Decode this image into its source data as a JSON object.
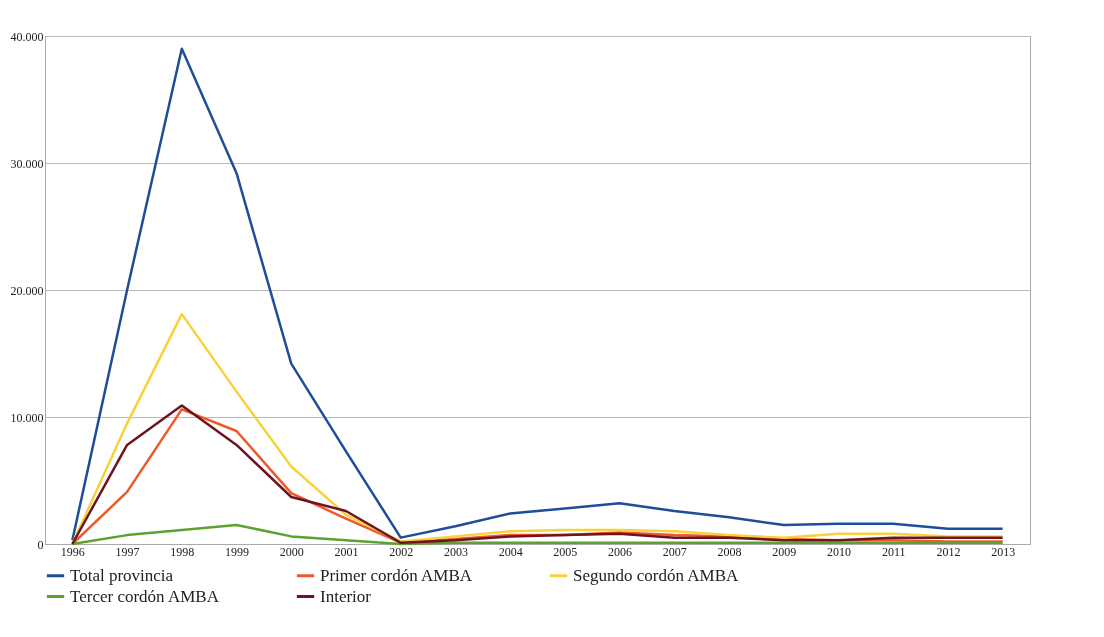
{
  "chart_data": {
    "type": "line",
    "categories": [
      "1996",
      "1997",
      "1998",
      "1999",
      "2000",
      "2001",
      "2002",
      "2003",
      "2004",
      "2005",
      "2006",
      "2007",
      "2008",
      "2009",
      "2010",
      "2011",
      "2012",
      "2013"
    ],
    "series": [
      {
        "name": "Total provincia",
        "color": "#1f4e99",
        "values": [
          300,
          20000,
          39000,
          29200,
          14200,
          7300,
          500,
          1400,
          2400,
          2800,
          3200,
          2600,
          2100,
          1500,
          1600,
          1600,
          1200,
          1200
        ]
      },
      {
        "name": "Primer cordón AMBA",
        "color": "#f0582a",
        "values": [
          0,
          4100,
          10600,
          8900,
          4000,
          2000,
          100,
          400,
          700,
          700,
          900,
          700,
          600,
          400,
          300,
          300,
          200,
          200
        ]
      },
      {
        "name": "Segundo cordón AMBA",
        "color": "#f7d23e",
        "values": [
          0,
          9500,
          18100,
          12000,
          6100,
          2300,
          200,
          600,
          1000,
          1100,
          1100,
          1000,
          700,
          500,
          800,
          800,
          600,
          600
        ]
      },
      {
        "name": "Tercer cordón AMBA",
        "color": "#5da130",
        "values": [
          0,
          700,
          1100,
          1500,
          600,
          300,
          0,
          100,
          100,
          100,
          100,
          100,
          100,
          100,
          100,
          100,
          100,
          100
        ]
      },
      {
        "name": "Interior",
        "color": "#6e1420",
        "values": [
          0,
          7800,
          10900,
          7800,
          3700,
          2600,
          100,
          300,
          600,
          700,
          800,
          500,
          500,
          300,
          300,
          500,
          500,
          500
        ]
      }
    ],
    "ylim": [
      0,
      40000
    ],
    "yticks": [
      {
        "value": 0,
        "label": "0"
      },
      {
        "value": 10000,
        "label": "10.000"
      },
      {
        "value": 20000,
        "label": "20.000"
      },
      {
        "value": 30000,
        "label": "30.000"
      },
      {
        "value": 40000,
        "label": "40.000"
      }
    ],
    "grid": "y",
    "legend": "bottom",
    "marker": "none",
    "line_style": "solid"
  }
}
